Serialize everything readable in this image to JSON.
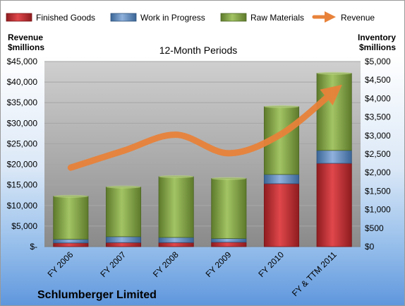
{
  "chart_data": {
    "type": "bar",
    "subtype": "stacked-bar-with-line",
    "title": "12-Month Periods",
    "company": "Schlumberger Limited",
    "left_axis_label": [
      "Revenue",
      "$millions"
    ],
    "right_axis_label": [
      "Inventory",
      "$millions"
    ],
    "categories": [
      "FY 2006",
      "FY 2007",
      "FY 2008",
      "FY 2009",
      "FY 2010",
      "FY & TTM 2011"
    ],
    "left_ylim": [
      0,
      45000
    ],
    "right_ylim": [
      0,
      5000
    ],
    "left_ticks": [
      "$-",
      "$5,000",
      "$10,000",
      "$15,000",
      "$20,000",
      "$25,000",
      "$30,000",
      "$35,000",
      "$40,000",
      "$45,000"
    ],
    "right_ticks": [
      "$0",
      "$500",
      "$1,000",
      "$1,500",
      "$2,000",
      "$2,500",
      "$3,000",
      "$3,500",
      "$4,000",
      "$4,500",
      "$5,000"
    ],
    "grid": true,
    "legend_position": "top",
    "series": [
      {
        "name": "Finished Goods",
        "axis": "right",
        "color": "#c0282d",
        "values": [
          100,
          110,
          110,
          120,
          1700,
          2250
        ]
      },
      {
        "name": "Work in Progress",
        "axis": "right",
        "color": "#4f81bd",
        "values": [
          100,
          160,
          140,
          100,
          250,
          350
        ]
      },
      {
        "name": "Raw Materials",
        "axis": "right",
        "color": "#77933c",
        "values": [
          1160,
          1340,
          1640,
          1620,
          1830,
          2080
        ]
      },
      {
        "name": "Revenue",
        "axis": "left",
        "type": "line",
        "color": "#e8823a",
        "values": [
          19200,
          23300,
          27200,
          22700,
          27400,
          37800
        ]
      }
    ]
  }
}
